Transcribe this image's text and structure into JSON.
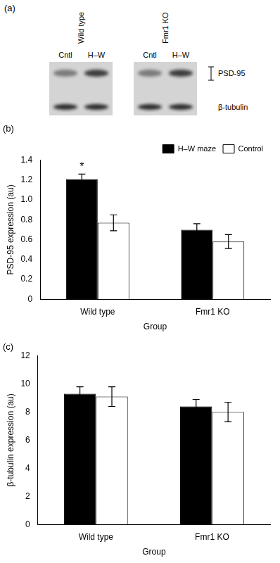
{
  "blot": {
    "label": "(a)",
    "groups": [
      {
        "name": "Wild type",
        "lanes": [
          "Cntl",
          "H–W"
        ]
      },
      {
        "name": "Fmr1 KO",
        "lanes": [
          "Cntl",
          "H–W"
        ]
      }
    ],
    "bands": [
      "PSD-95",
      "β-tubulin"
    ]
  },
  "chart_data": [
    {
      "type": "bar",
      "title": "(b)",
      "x_label": "Group",
      "y_label": "PSD-95 expression (au)",
      "categories": [
        "Wild type",
        "Fmr1 KO"
      ],
      "series": [
        {
          "name": "H–W maze",
          "color": "#000000",
          "values": [
            1.21,
            0.7
          ],
          "error": [
            0.05,
            0.06
          ]
        },
        {
          "name": "Control",
          "color": "#ffffff",
          "values": [
            0.77,
            0.58
          ],
          "error": [
            0.08,
            0.07
          ]
        }
      ],
      "ylim": [
        0,
        1.4
      ],
      "yticks": [
        0,
        0.2,
        0.4,
        0.6,
        0.8,
        {
          "value": 1,
          "label": "1.0"
        },
        1.2,
        1.4
      ],
      "grid": false,
      "legend": "upper right",
      "annotations": [
        {
          "text": "*",
          "category": "Wild type",
          "series": "H–W maze"
        }
      ]
    },
    {
      "type": "bar",
      "title": "(c)",
      "x_label": "Group",
      "y_label": "β-tubulin expression (au)",
      "categories": [
        "Wild type",
        "Fmr1 KO"
      ],
      "series": [
        {
          "color": "#000000",
          "values": [
            9.3,
            8.4
          ],
          "error": [
            0.5,
            0.5
          ]
        },
        {
          "color": "#ffffff",
          "values": [
            9.1,
            8.0
          ],
          "error": [
            0.7,
            0.7
          ]
        }
      ],
      "ylim": [
        0,
        12
      ],
      "yticks": [
        0,
        2,
        4,
        6,
        8,
        10,
        12
      ],
      "grid": false
    }
  ]
}
